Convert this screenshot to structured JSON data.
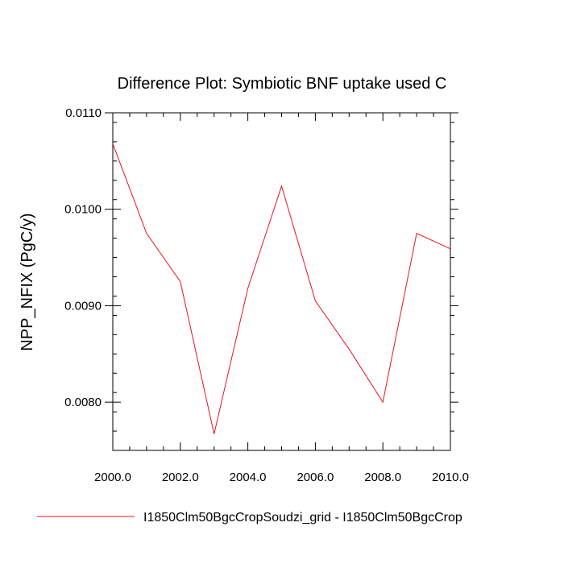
{
  "chart_data": {
    "type": "line",
    "title": "Difference Plot: Symbiotic BNF uptake used C",
    "xlabel": "",
    "ylabel": "NPP_NFIX  (PgC/y)",
    "xlim": [
      2000.0,
      2010.0
    ],
    "ylim": [
      0.0075,
      0.011
    ],
    "x_ticks": [
      "2000.0",
      "2002.0",
      "2004.0",
      "2006.0",
      "2008.0",
      "2010.0"
    ],
    "y_ticks": [
      "0.0080",
      "0.0090",
      "0.0100",
      "0.0110"
    ],
    "grid": false,
    "legend_position": "bottom",
    "series": [
      {
        "name": "I1850Clm50BgcCropSoudzi_grid - I1850Clm50BgcCrop",
        "color": "#e8141e",
        "x": [
          2000,
          2001,
          2002,
          2003,
          2004,
          2005,
          2006,
          2007,
          2008,
          2009,
          2010
        ],
        "y": [
          0.01068,
          0.00975,
          0.00925,
          0.00767,
          0.00918,
          0.01024,
          0.00905,
          0.00855,
          0.008,
          0.00975,
          0.00959
        ]
      }
    ]
  }
}
